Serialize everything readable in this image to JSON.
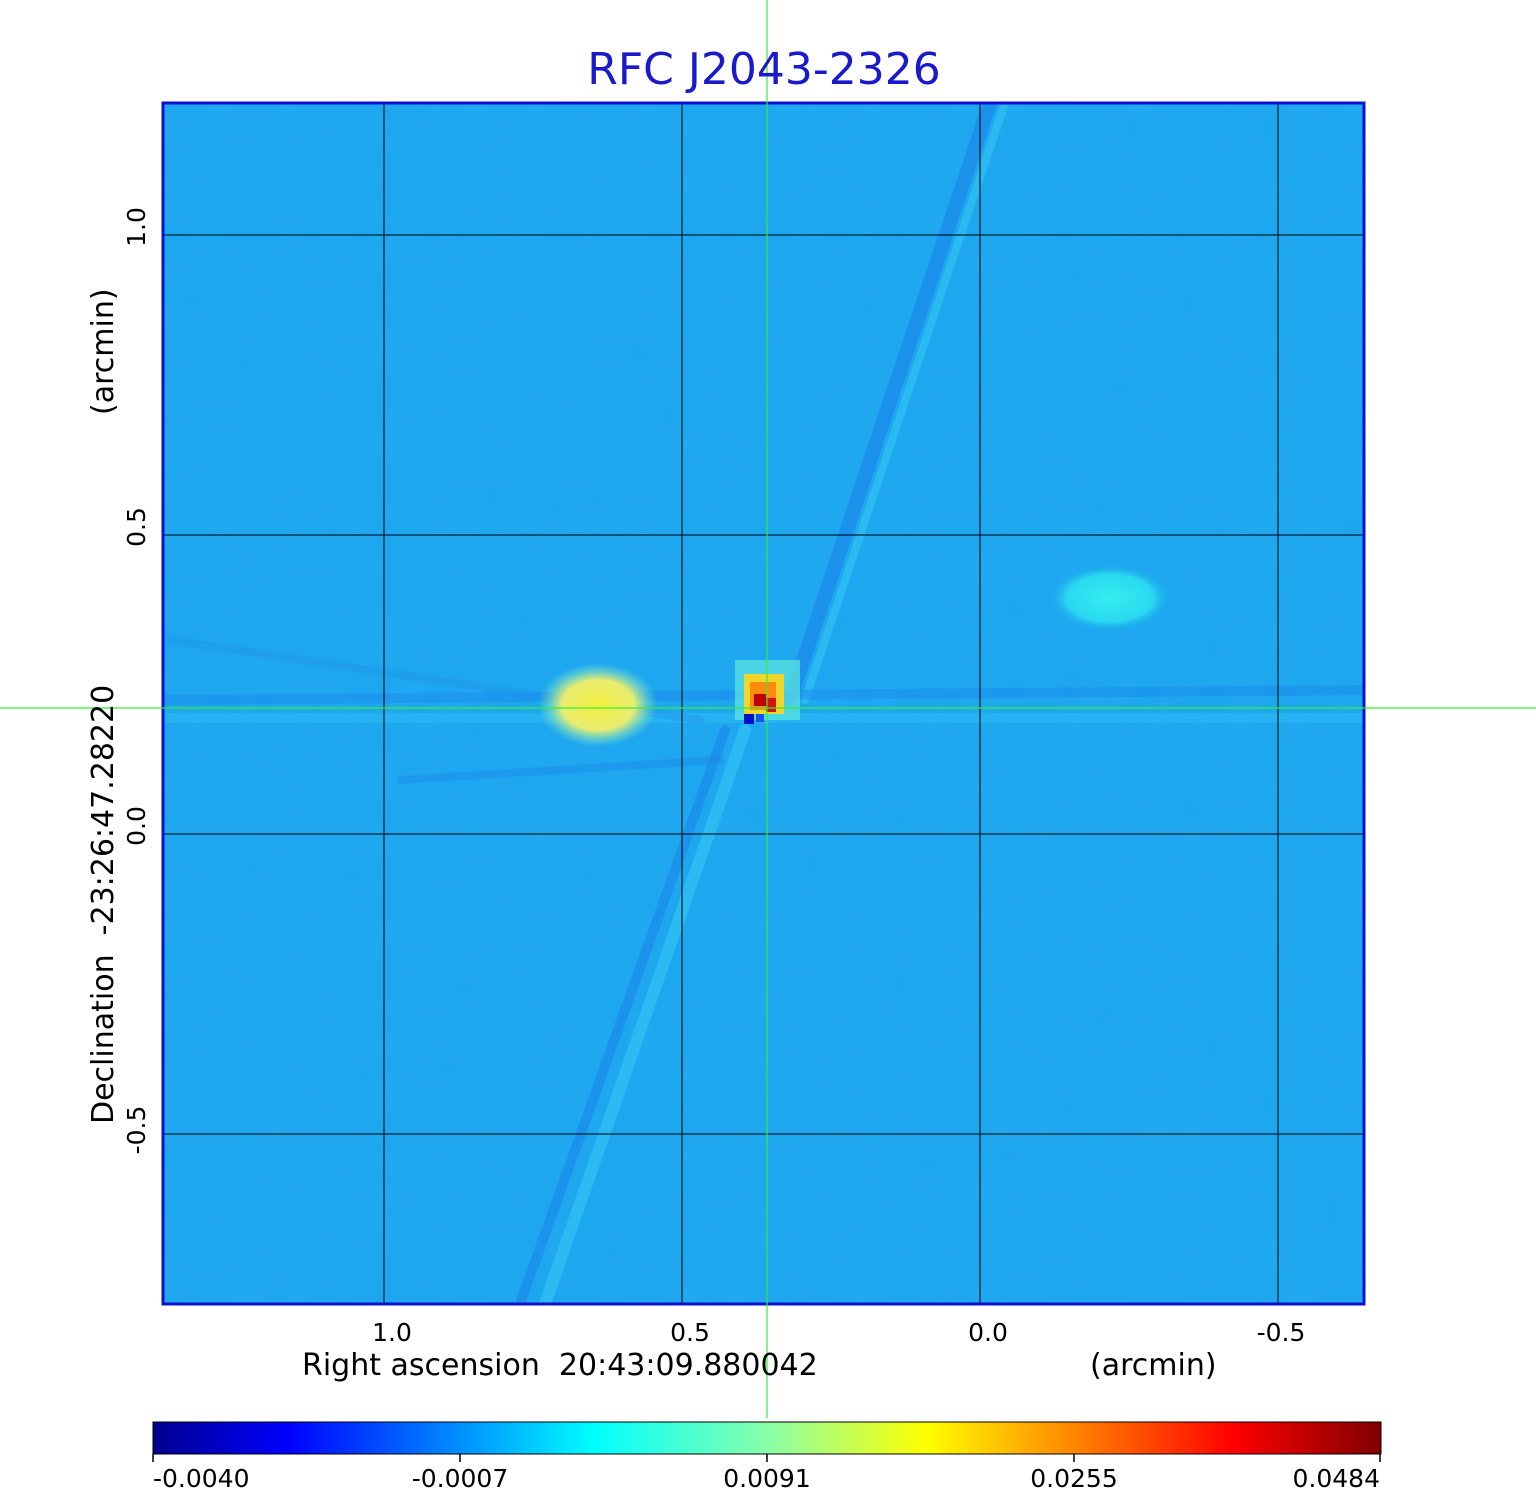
{
  "title": "RFC J2043-2326",
  "x_axis": {
    "label": "Right ascension  20:43:09.880042",
    "unit": "(arcmin)",
    "ticks": [
      "1.0",
      "0.5",
      "0.0",
      "-0.5"
    ]
  },
  "y_axis": {
    "label": "Declination  -23:26:47.28220",
    "unit": "(arcmin)",
    "ticks": [
      "1.0",
      "0.5",
      "0.0",
      "-0.5"
    ]
  },
  "colorbar": {
    "colormap": "jet",
    "ticks": [
      "-0.0040",
      "-0.0007",
      "0.0091",
      "0.0255",
      "0.0484"
    ]
  },
  "colors": {
    "title": "#1a1acc",
    "frame": "#1010d0",
    "grid": "#000000",
    "crosshair": "#33ee33",
    "background_field": "#1aa6ee"
  }
}
